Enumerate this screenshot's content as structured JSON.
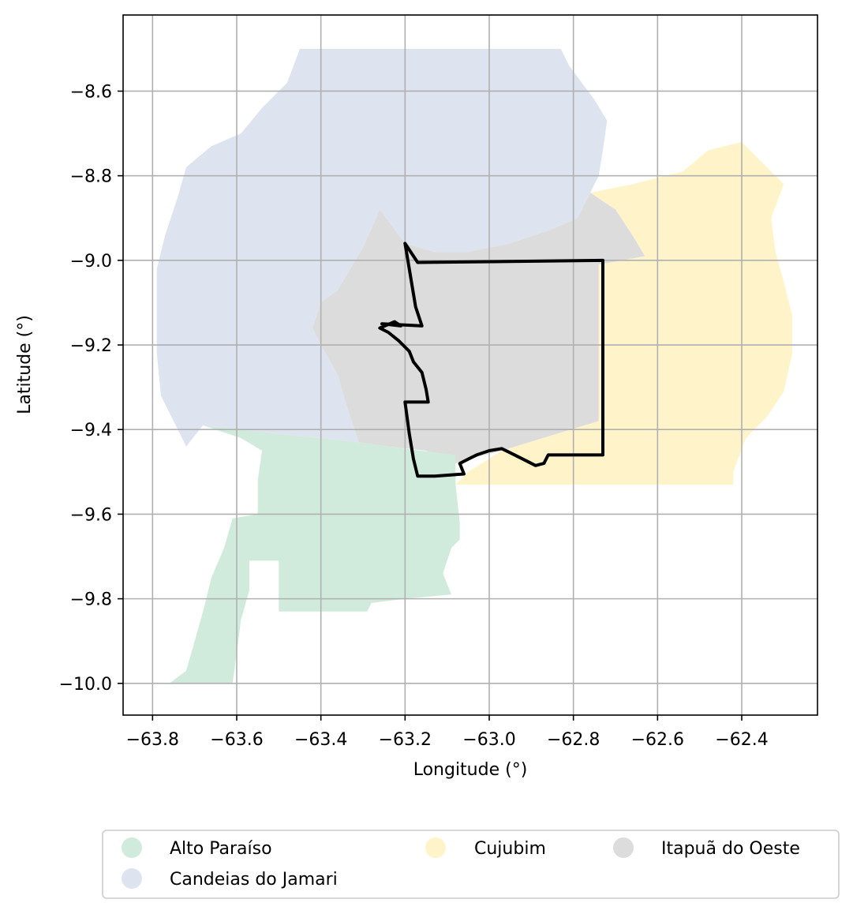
{
  "chart_data": {
    "type": "map",
    "xlabel": "Longitude (°)",
    "ylabel": "Latitude (°)",
    "xlim": [
      -63.87,
      -62.22
    ],
    "ylim": [
      -10.075,
      -8.42
    ],
    "grid": true,
    "x_ticks": [
      -63.8,
      -63.6,
      -63.4,
      -63.2,
      -63.0,
      -62.8,
      -62.6,
      -62.4
    ],
    "y_ticks": [
      -8.6,
      -8.8,
      -9.0,
      -9.2,
      -9.4,
      -9.6,
      -9.8,
      -10.0
    ],
    "x_tick_labels": [
      "−63.8",
      "−63.6",
      "−63.4",
      "−63.2",
      "−63.0",
      "−62.8",
      "−62.6",
      "−62.4"
    ],
    "y_tick_labels": [
      "−8.6",
      "−8.8",
      "−9.0",
      "−9.2",
      "−9.4",
      "−9.6",
      "−9.8",
      "−10.0"
    ],
    "legend_placement": "bottom-center",
    "legend": [
      {
        "label": "Alto Paraíso",
        "color": "#d0ebdc"
      },
      {
        "label": "Candeias do Jamari",
        "color": "#dee3f0"
      },
      {
        "label": "Cujubim",
        "color": "#fff4c9"
      },
      {
        "label": "Itapuã do Oeste",
        "color": "#dcdcdc"
      }
    ],
    "regions": [
      {
        "name": "Candeias do Jamari",
        "color": "#dee3f0",
        "polygon": [
          [
            -63.45,
            -8.5
          ],
          [
            -63.0,
            -8.5
          ],
          [
            -62.83,
            -8.5
          ],
          [
            -62.81,
            -8.54
          ],
          [
            -62.78,
            -8.58
          ],
          [
            -62.75,
            -8.62
          ],
          [
            -62.72,
            -8.67
          ],
          [
            -62.73,
            -8.74
          ],
          [
            -62.74,
            -8.8
          ],
          [
            -62.76,
            -8.84
          ],
          [
            -62.79,
            -8.9
          ],
          [
            -62.86,
            -8.93
          ],
          [
            -62.95,
            -8.96
          ],
          [
            -63.05,
            -8.98
          ],
          [
            -63.13,
            -8.98
          ],
          [
            -63.2,
            -8.96
          ],
          [
            -63.26,
            -8.88
          ],
          [
            -63.3,
            -8.97
          ],
          [
            -63.36,
            -9.07
          ],
          [
            -63.4,
            -9.1
          ],
          [
            -63.42,
            -9.16
          ],
          [
            -63.4,
            -9.2
          ],
          [
            -63.36,
            -9.27
          ],
          [
            -63.34,
            -9.34
          ],
          [
            -63.31,
            -9.43
          ],
          [
            -63.5,
            -9.41
          ],
          [
            -63.59,
            -9.4
          ],
          [
            -63.68,
            -9.39
          ],
          [
            -63.72,
            -9.44
          ],
          [
            -63.75,
            -9.38
          ],
          [
            -63.78,
            -9.32
          ],
          [
            -63.79,
            -9.22
          ],
          [
            -63.79,
            -9.12
          ],
          [
            -63.79,
            -9.02
          ],
          [
            -63.77,
            -8.94
          ],
          [
            -63.74,
            -8.85
          ],
          [
            -63.72,
            -8.78
          ],
          [
            -63.66,
            -8.73
          ],
          [
            -63.59,
            -8.7
          ],
          [
            -63.54,
            -8.64
          ],
          [
            -63.48,
            -8.58
          ],
          [
            -63.45,
            -8.5
          ]
        ]
      },
      {
        "name": "Cujubim",
        "color": "#fff4c9",
        "polygon": [
          [
            -62.76,
            -8.84
          ],
          [
            -62.66,
            -8.82
          ],
          [
            -62.54,
            -8.79
          ],
          [
            -62.48,
            -8.74
          ],
          [
            -62.4,
            -8.72
          ],
          [
            -62.35,
            -8.77
          ],
          [
            -62.3,
            -8.82
          ],
          [
            -62.33,
            -8.9
          ],
          [
            -62.32,
            -8.98
          ],
          [
            -62.3,
            -9.05
          ],
          [
            -62.28,
            -9.13
          ],
          [
            -62.28,
            -9.22
          ],
          [
            -62.3,
            -9.31
          ],
          [
            -62.34,
            -9.37
          ],
          [
            -62.39,
            -9.42
          ],
          [
            -62.42,
            -9.5
          ],
          [
            -62.42,
            -9.53
          ],
          [
            -62.6,
            -9.53
          ],
          [
            -62.8,
            -9.53
          ],
          [
            -63.0,
            -9.53
          ],
          [
            -63.08,
            -9.53
          ],
          [
            -63.05,
            -9.5
          ],
          [
            -62.97,
            -9.45
          ],
          [
            -62.84,
            -9.41
          ],
          [
            -62.74,
            -9.38
          ],
          [
            -62.74,
            -9.01
          ],
          [
            -62.63,
            -8.99
          ],
          [
            -62.66,
            -8.94
          ],
          [
            -62.7,
            -8.88
          ],
          [
            -62.76,
            -8.84
          ]
        ]
      },
      {
        "name": "Itapuã do Oeste",
        "color": "#dcdcdc",
        "polygon": [
          [
            -63.26,
            -8.88
          ],
          [
            -63.2,
            -8.96
          ],
          [
            -63.13,
            -8.98
          ],
          [
            -63.05,
            -8.98
          ],
          [
            -62.95,
            -8.96
          ],
          [
            -62.86,
            -8.93
          ],
          [
            -62.79,
            -8.9
          ],
          [
            -62.76,
            -8.84
          ],
          [
            -62.7,
            -8.88
          ],
          [
            -62.66,
            -8.94
          ],
          [
            -62.63,
            -8.99
          ],
          [
            -62.74,
            -9.01
          ],
          [
            -62.74,
            -9.38
          ],
          [
            -62.84,
            -9.41
          ],
          [
            -62.97,
            -9.45
          ],
          [
            -63.05,
            -9.47
          ],
          [
            -63.08,
            -9.48
          ],
          [
            -63.15,
            -9.45
          ],
          [
            -63.24,
            -9.44
          ],
          [
            -63.31,
            -9.43
          ],
          [
            -63.34,
            -9.34
          ],
          [
            -63.36,
            -9.27
          ],
          [
            -63.4,
            -9.2
          ],
          [
            -63.42,
            -9.16
          ],
          [
            -63.4,
            -9.1
          ],
          [
            -63.36,
            -9.07
          ],
          [
            -63.3,
            -8.97
          ],
          [
            -63.26,
            -8.88
          ]
        ]
      },
      {
        "name": "Alto Paraíso",
        "color": "#d0ebdc",
        "polygon": [
          [
            -63.68,
            -9.39
          ],
          [
            -63.5,
            -9.41
          ],
          [
            -63.31,
            -9.43
          ],
          [
            -63.24,
            -9.44
          ],
          [
            -63.08,
            -9.46
          ],
          [
            -63.08,
            -9.53
          ],
          [
            -63.07,
            -9.62
          ],
          [
            -63.07,
            -9.66
          ],
          [
            -63.09,
            -9.68
          ],
          [
            -63.11,
            -9.74
          ],
          [
            -63.09,
            -9.79
          ],
          [
            -63.2,
            -9.8
          ],
          [
            -63.28,
            -9.81
          ],
          [
            -63.29,
            -9.83
          ],
          [
            -63.5,
            -9.83
          ],
          [
            -63.5,
            -9.71
          ],
          [
            -63.57,
            -9.71
          ],
          [
            -63.57,
            -9.78
          ],
          [
            -63.59,
            -9.85
          ],
          [
            -63.6,
            -9.93
          ],
          [
            -63.61,
            -10.0
          ],
          [
            -63.76,
            -10.0
          ],
          [
            -63.72,
            -9.97
          ],
          [
            -63.7,
            -9.9
          ],
          [
            -63.68,
            -9.83
          ],
          [
            -63.66,
            -9.75
          ],
          [
            -63.63,
            -9.68
          ],
          [
            -63.61,
            -9.61
          ],
          [
            -63.55,
            -9.6
          ],
          [
            -63.55,
            -9.52
          ],
          [
            -63.54,
            -9.45
          ],
          [
            -63.59,
            -9.42
          ],
          [
            -63.68,
            -9.39
          ]
        ]
      }
    ],
    "outline": {
      "color": "#000000",
      "polygon": [
        [
          -63.2,
          -8.96
        ],
        [
          -63.17,
          -9.005
        ],
        [
          -62.73,
          -9.0
        ],
        [
          -62.73,
          -9.46
        ],
        [
          -62.86,
          -9.46
        ],
        [
          -62.87,
          -9.48
        ],
        [
          -62.89,
          -9.485
        ],
        [
          -62.92,
          -9.47
        ],
        [
          -62.95,
          -9.455
        ],
        [
          -62.97,
          -9.445
        ],
        [
          -63.0,
          -9.45
        ],
        [
          -63.03,
          -9.46
        ],
        [
          -63.05,
          -9.47
        ],
        [
          -63.07,
          -9.48
        ],
        [
          -63.06,
          -9.505
        ],
        [
          -63.13,
          -9.51
        ],
        [
          -63.17,
          -9.51
        ],
        [
          -63.18,
          -9.47
        ],
        [
          -63.19,
          -9.41
        ],
        [
          -63.2,
          -9.335
        ],
        [
          -63.145,
          -9.335
        ],
        [
          -63.15,
          -9.305
        ],
        [
          -63.16,
          -9.265
        ],
        [
          -63.18,
          -9.24
        ],
        [
          -63.19,
          -9.215
        ],
        [
          -63.215,
          -9.19
        ],
        [
          -63.24,
          -9.17
        ],
        [
          -63.26,
          -9.16
        ],
        [
          -63.225,
          -9.145
        ],
        [
          -63.21,
          -9.155
        ],
        [
          -63.255,
          -9.15
        ],
        [
          -63.16,
          -9.155
        ],
        [
          -63.175,
          -9.11
        ],
        [
          -63.2,
          -8.96
        ]
      ]
    }
  }
}
